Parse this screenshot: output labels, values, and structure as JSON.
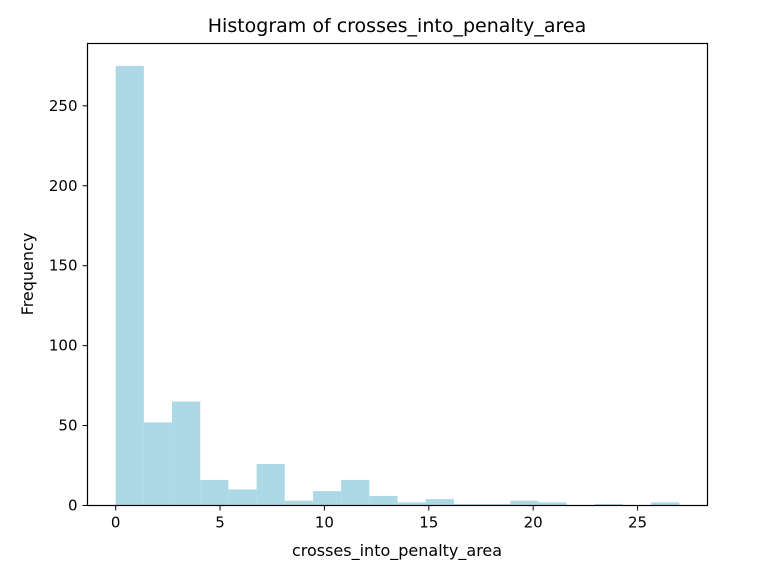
{
  "chart_data": {
    "type": "bar",
    "title": "Histogram of crosses_into_penalty_area",
    "xlabel": "crosses_into_penalty_area",
    "ylabel": "Frequency",
    "bin_start": 0,
    "bin_width": 1.35,
    "values": [
      275,
      52,
      65,
      16,
      10,
      26,
      3,
      9,
      16,
      6,
      2,
      4,
      1,
      1,
      3,
      2,
      0,
      1,
      0,
      2
    ],
    "xlim": [
      -1.35,
      28.35
    ],
    "ylim": [
      0,
      289
    ],
    "xticks": [
      0,
      5,
      10,
      15,
      20,
      25
    ],
    "yticks": [
      0,
      50,
      100,
      150,
      200,
      250
    ],
    "bar_color": "#add8e6",
    "grid": false
  }
}
